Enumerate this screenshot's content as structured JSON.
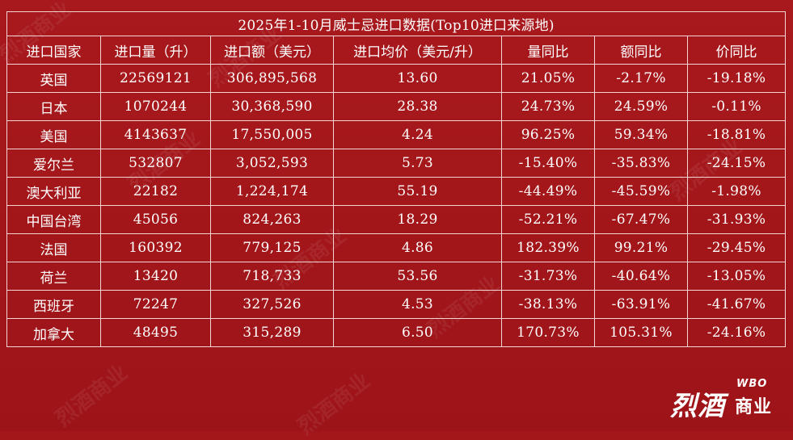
{
  "chart_data": {
    "type": "table",
    "title": "2025年1-10月威士忌进口数据(Top10进口来源地)",
    "columns": [
      "进口国家",
      "进口量（升）",
      "进口额（美元）",
      "进口均价（美元/升）",
      "量同比",
      "额同比",
      "价同比"
    ],
    "rows": [
      [
        "英国",
        "22569121",
        "306,895,568",
        "13.60",
        "21.05%",
        "-2.17%",
        "-19.18%"
      ],
      [
        "日本",
        "1070244",
        "30,368,590",
        "28.38",
        "24.73%",
        "24.59%",
        "-0.11%"
      ],
      [
        "美国",
        "4143637",
        "17,550,005",
        "4.24",
        "96.25%",
        "59.34%",
        "-18.81%"
      ],
      [
        "爱尔兰",
        "532807",
        "3,052,593",
        "5.73",
        "-15.40%",
        "-35.83%",
        "-24.15%"
      ],
      [
        "澳大利亚",
        "22182",
        "1,224,174",
        "55.19",
        "-44.49%",
        "-45.59%",
        "-1.98%"
      ],
      [
        "中国台湾",
        "45056",
        "824,263",
        "18.29",
        "-52.21%",
        "-67.47%",
        "-31.93%"
      ],
      [
        "法国",
        "160392",
        "779,125",
        "4.86",
        "182.39%",
        "99.21%",
        "-29.45%"
      ],
      [
        "荷兰",
        "13420",
        "718,733",
        "53.56",
        "-31.73%",
        "-40.64%",
        "-13.05%"
      ],
      [
        "西班牙",
        "72247",
        "327,526",
        "4.53",
        "-38.13%",
        "-63.91%",
        "-41.67%"
      ],
      [
        "加拿大",
        "48495",
        "315,289",
        "6.50",
        "170.73%",
        "105.31%",
        "-24.16%"
      ]
    ]
  },
  "brand": {
    "logo_main": "烈酒",
    "logo_latin": "WBO",
    "logo_sub": "商业"
  },
  "colors": {
    "background": "#a3171b",
    "text": "#ffffff",
    "border": "#f2d6d6"
  }
}
